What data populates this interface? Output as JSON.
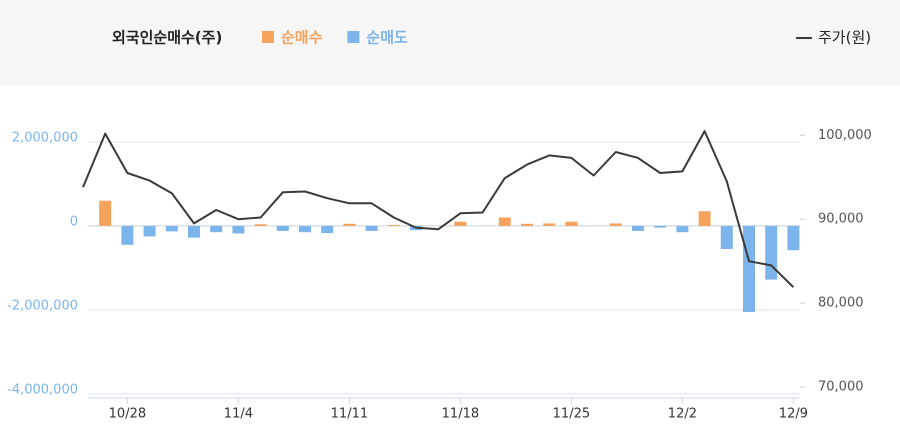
{
  "chart_data": {
    "type": "bar_line",
    "y_label": "외국인순매수(주)",
    "categories": [
      null,
      null,
      "10/28",
      null,
      null,
      null,
      null,
      "11/4",
      null,
      null,
      null,
      null,
      "11/11",
      null,
      null,
      null,
      null,
      "11/18",
      null,
      null,
      null,
      null,
      "11/25",
      null,
      null,
      null,
      null,
      "12/2",
      null,
      null,
      null,
      null,
      "12/9"
    ],
    "series": [
      {
        "name": "순매수",
        "color": "#f5a35c",
        "type": "bar",
        "values": [
          null,
          600000,
          null,
          null,
          null,
          null,
          null,
          null,
          40000,
          null,
          null,
          null,
          50000,
          null,
          20000,
          null,
          null,
          100000,
          null,
          200000,
          50000,
          60000,
          100000,
          null,
          60000,
          null,
          null,
          null,
          350000,
          null,
          null,
          null,
          null
        ]
      },
      {
        "name": "순매도",
        "color": "#7cb5ec",
        "type": "bar",
        "values": [
          null,
          null,
          -450000,
          -250000,
          -130000,
          -280000,
          -150000,
          -180000,
          null,
          -120000,
          -150000,
          -170000,
          null,
          -120000,
          null,
          -100000,
          null,
          null,
          null,
          null,
          null,
          null,
          null,
          null,
          null,
          -120000,
          -40000,
          -150000,
          null,
          -550000,
          -2050000,
          -1280000,
          -580000
        ]
      },
      {
        "name": "주가(원)",
        "color": "#3a3a3a",
        "type": "line",
        "axis": "y2",
        "values": [
          93800,
          100200,
          95500,
          94600,
          93100,
          89500,
          91100,
          90000,
          90200,
          93200,
          93300,
          92500,
          91900,
          91900,
          90200,
          89000,
          88800,
          90700,
          90800,
          94900,
          96500,
          97600,
          97300,
          95200,
          98000,
          97300,
          95500,
          95700,
          100500,
          94500,
          85000,
          84500,
          81900
        ]
      }
    ],
    "ylim": [
      -4100000,
      3000000
    ],
    "yticks": [
      {
        "value": 2000000,
        "label": "2,000,000"
      },
      0,
      {
        "value": -2000000,
        "label": "-2,000,000"
      },
      {
        "value": -4000000,
        "label": "-4,000,000"
      }
    ],
    "y2lim": [
      68700,
      104200
    ],
    "y2ticks": [
      {
        "value": 100000,
        "label": "100,000"
      },
      {
        "value": 90000,
        "label": "90,000"
      },
      {
        "value": 80000,
        "label": "80,000"
      },
      {
        "value": 70000,
        "label": "70,000"
      }
    ],
    "grid": true
  }
}
